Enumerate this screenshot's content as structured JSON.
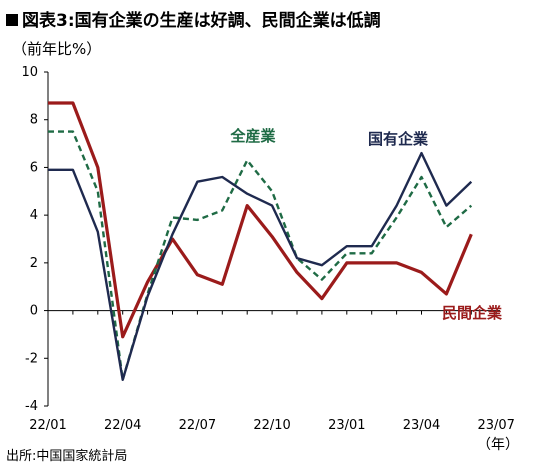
{
  "header": {
    "title": "図表3:国有企業の生産は好調、民間企業は低調",
    "marker": "■"
  },
  "footer": {
    "source": "出所:中国国家統計局"
  },
  "chart_data": {
    "type": "line",
    "title": "図表3:国有企業の生産は好調、民間企業は低調",
    "ylabel": "（前年比%）",
    "xlabel": "（年）",
    "ylim": [
      -4,
      10
    ],
    "yticks": [
      -4,
      -2,
      0,
      2,
      4,
      6,
      8,
      10
    ],
    "xtick_labels": [
      "22/01",
      "22/04",
      "22/07",
      "22/10",
      "23/01",
      "23/04",
      "23/07"
    ],
    "x": [
      "22/01",
      "22/02",
      "22/03",
      "22/04",
      "22/05",
      "22/06",
      "22/07",
      "22/08",
      "22/09",
      "22/10",
      "22/11",
      "22/12",
      "23/01",
      "23/02",
      "23/03",
      "23/04",
      "23/05",
      "23/06"
    ],
    "grid": false,
    "legend": "inline labels",
    "series": [
      {
        "name": "国有企業",
        "color": "#1f2a4f",
        "style": "solid",
        "values": [
          5.9,
          5.9,
          3.3,
          -2.9,
          0.6,
          3.2,
          5.4,
          5.6,
          4.9,
          4.4,
          2.2,
          1.9,
          2.7,
          2.7,
          4.4,
          6.6,
          4.4,
          5.4
        ]
      },
      {
        "name": "全産業",
        "color": "#1f6b45",
        "style": "dashed",
        "values": [
          7.5,
          7.5,
          5.0,
          -2.9,
          0.7,
          3.9,
          3.8,
          4.2,
          6.3,
          5.0,
          2.2,
          1.3,
          2.4,
          2.4,
          3.9,
          5.6,
          3.5,
          4.4
        ]
      },
      {
        "name": "民間企業",
        "color": "#9b1b1b",
        "style": "solid",
        "values": [
          8.7,
          8.7,
          6.0,
          -1.1,
          1.2,
          3.0,
          1.5,
          1.1,
          4.4,
          3.1,
          1.6,
          0.5,
          2.0,
          2.0,
          2.0,
          1.6,
          0.7,
          3.2
        ]
      }
    ]
  }
}
